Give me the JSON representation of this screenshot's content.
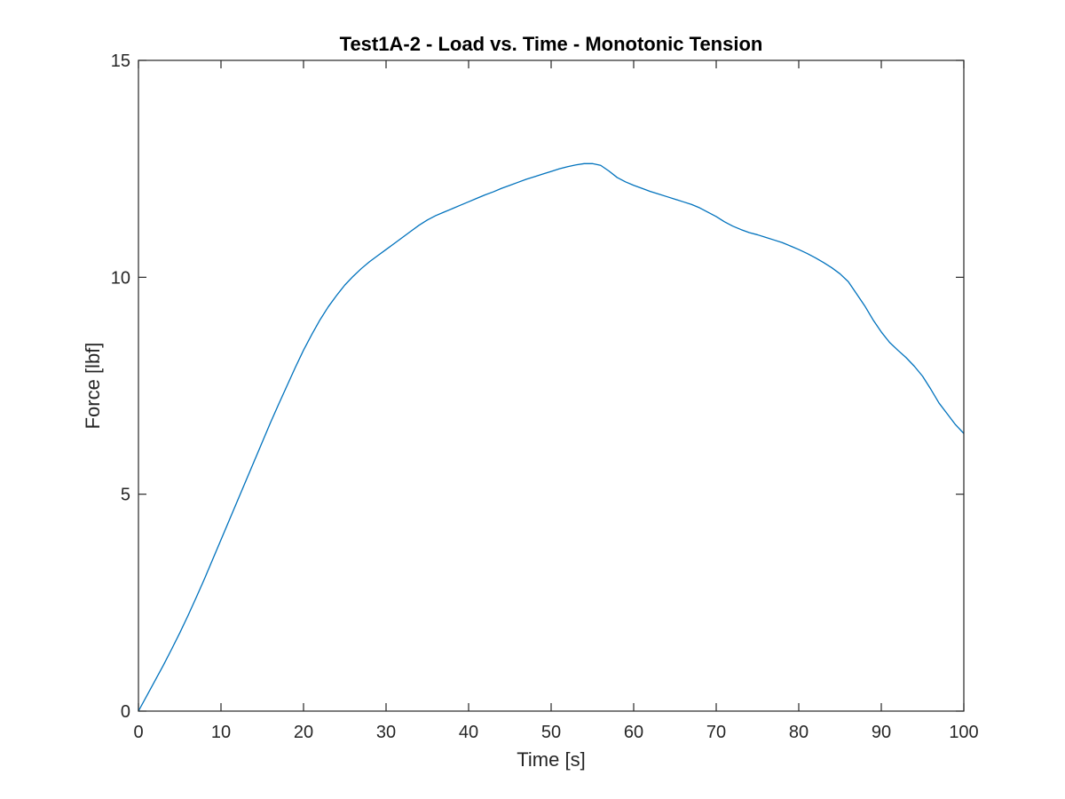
{
  "chart_data": {
    "type": "line",
    "title": "Test1A-2 - Load vs. Time - Monotonic Tension",
    "xlabel": "Time [s]",
    "ylabel": "Force [lbf]",
    "xlim": [
      0,
      100
    ],
    "ylim": [
      0,
      15
    ],
    "xticks": [
      0,
      10,
      20,
      30,
      40,
      50,
      60,
      70,
      80,
      90,
      100
    ],
    "yticks": [
      0,
      5,
      10,
      15
    ],
    "grid": false,
    "box": true,
    "series": [
      {
        "color": "#0072BD",
        "x": [
          0,
          1,
          2,
          3,
          4,
          5,
          6,
          7,
          8,
          9,
          10,
          11,
          12,
          13,
          14,
          15,
          16,
          17,
          18,
          19,
          20,
          21,
          22,
          23,
          24,
          25,
          26,
          27,
          28,
          29,
          30,
          31,
          32,
          33,
          34,
          35,
          36,
          37,
          38,
          39,
          40,
          41,
          42,
          43,
          44,
          45,
          46,
          47,
          48,
          49,
          50,
          51,
          52,
          53,
          54,
          55,
          56,
          57,
          58,
          59,
          60,
          61,
          62,
          63,
          64,
          65,
          66,
          67,
          68,
          69,
          70,
          71,
          72,
          73,
          74,
          75,
          76,
          77,
          78,
          79,
          80,
          81,
          82,
          83,
          84,
          85,
          86,
          87,
          88,
          89,
          90,
          91,
          92,
          93,
          94,
          95,
          96,
          97,
          98,
          99,
          100
        ],
        "y": [
          0.0,
          0.35,
          0.7,
          1.05,
          1.42,
          1.8,
          2.2,
          2.62,
          3.05,
          3.5,
          3.95,
          4.4,
          4.85,
          5.3,
          5.75,
          6.2,
          6.65,
          7.08,
          7.5,
          7.92,
          8.32,
          8.68,
          9.02,
          9.32,
          9.58,
          9.82,
          10.02,
          10.2,
          10.36,
          10.5,
          10.64,
          10.78,
          10.92,
          11.06,
          11.2,
          11.32,
          11.42,
          11.5,
          11.58,
          11.66,
          11.74,
          11.82,
          11.9,
          11.97,
          12.05,
          12.12,
          12.19,
          12.26,
          12.32,
          12.38,
          12.44,
          12.5,
          12.55,
          12.59,
          12.62,
          12.62,
          12.58,
          12.45,
          12.3,
          12.2,
          12.12,
          12.05,
          11.98,
          11.92,
          11.86,
          11.8,
          11.74,
          11.68,
          11.6,
          11.5,
          11.4,
          11.28,
          11.18,
          11.1,
          11.03,
          10.98,
          10.92,
          10.86,
          10.8,
          10.72,
          10.64,
          10.55,
          10.45,
          10.34,
          10.22,
          10.08,
          9.9,
          9.62,
          9.34,
          9.02,
          8.74,
          8.5,
          8.32,
          8.15,
          7.95,
          7.72,
          7.42,
          7.1,
          6.85,
          6.6,
          6.4
        ]
      }
    ]
  }
}
